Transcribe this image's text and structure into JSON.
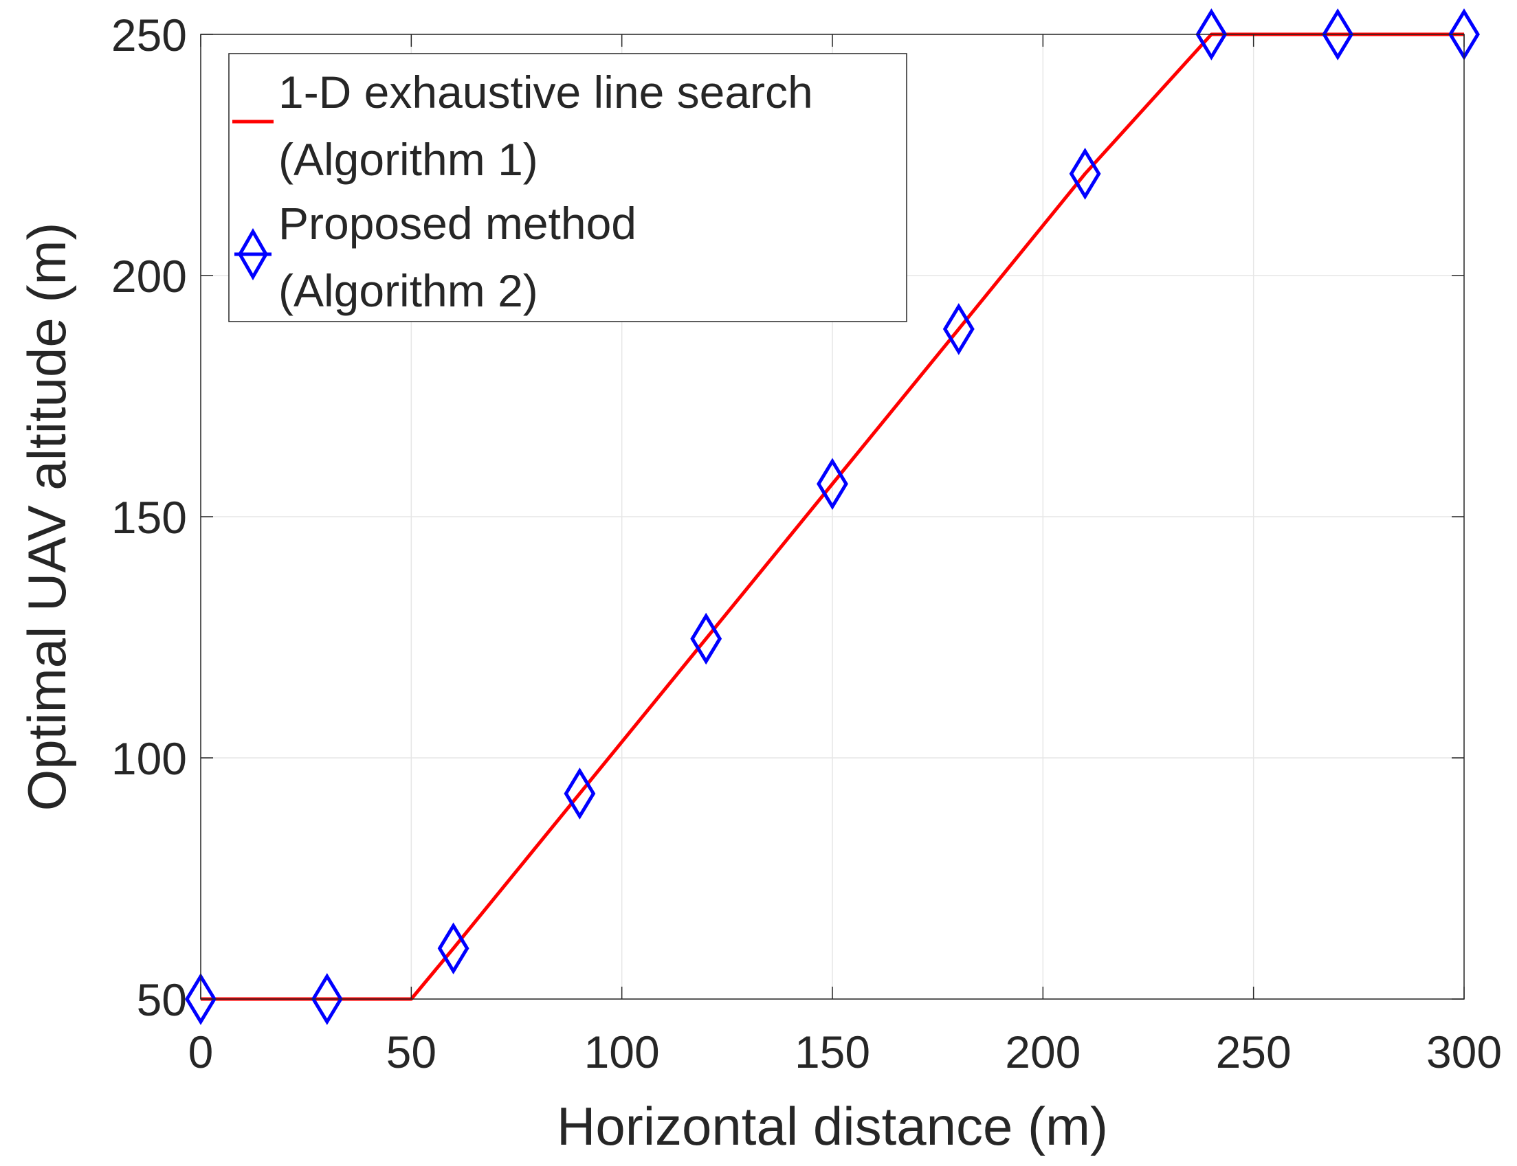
{
  "chart_data": {
    "type": "line",
    "xlabel": "Horizontal distance (m)",
    "ylabel": "Optimal UAV altitude (m)",
    "xlim": [
      0,
      300
    ],
    "ylim": [
      50,
      250
    ],
    "xticks": [
      "0",
      "50",
      "100",
      "150",
      "200",
      "250",
      "300"
    ],
    "yticks": [
      "50",
      "100",
      "150",
      "200",
      "250"
    ],
    "grid": true,
    "legend_position": "top-left",
    "series": [
      {
        "name": "1-D exhaustive line search (Algorithm 1)",
        "legend_lines": [
          "1-D exhaustive line search",
          "(Algorithm 1)"
        ],
        "style": "line",
        "color": "#ff0000",
        "x": [
          0,
          50,
          60,
          90,
          120,
          150,
          180,
          210,
          240,
          270,
          300
        ],
        "y": [
          50,
          50,
          60.5,
          92.6,
          124.7,
          156.8,
          188.9,
          221.1,
          250,
          250,
          250
        ]
      },
      {
        "name": "Proposed method (Algorithm 2)",
        "legend_lines": [
          "Proposed method",
          "(Algorithm 2)"
        ],
        "style": "markers",
        "marker": "diamond",
        "color": "#0000ff",
        "x": [
          0,
          30,
          60,
          90,
          120,
          150,
          180,
          210,
          240,
          270,
          300
        ],
        "y": [
          50,
          50,
          60.5,
          92.6,
          124.7,
          156.8,
          188.9,
          221.1,
          250,
          250,
          250
        ]
      }
    ]
  }
}
